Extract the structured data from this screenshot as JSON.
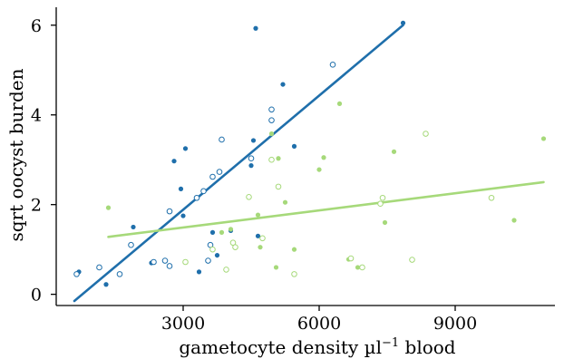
{
  "chart_data": {
    "type": "scatter",
    "xlabel": "gametocyte density µl",
    "xlabel_superscript": "−1",
    "xlabel_suffix": " blood",
    "ylabel": "sqrt oocyst burden",
    "xlim": [
      200,
      11200
    ],
    "ylim": [
      -0.25,
      6.4
    ],
    "x_ticks": [
      3000,
      6000,
      9000
    ],
    "x_tick_labels": [
      "3000",
      "6000",
      "9000"
    ],
    "y_ticks": [
      0,
      2,
      4,
      6
    ],
    "y_tick_labels": [
      "0",
      "2",
      "4",
      "6"
    ],
    "grid": false,
    "colors": {
      "blue": "#1f6fab",
      "green": "#a6d97a"
    },
    "series": [
      {
        "color": "#1f6fab",
        "filled": [
          [
            700,
            0.5
          ],
          [
            1300,
            0.22
          ],
          [
            1900,
            1.5
          ],
          [
            2300,
            0.7
          ],
          [
            2800,
            2.97
          ],
          [
            2950,
            2.35
          ],
          [
            3000,
            1.75
          ],
          [
            3050,
            3.25
          ],
          [
            3350,
            0.5
          ],
          [
            3650,
            1.38
          ],
          [
            3750,
            0.87
          ],
          [
            4050,
            1.42
          ],
          [
            4500,
            2.87
          ],
          [
            4550,
            3.43
          ],
          [
            4600,
            5.93
          ],
          [
            4650,
            1.3
          ],
          [
            5200,
            4.68
          ],
          [
            5450,
            3.3
          ],
          [
            7850,
            6.05
          ]
        ],
        "hollow": [
          [
            650,
            0.45
          ],
          [
            1150,
            0.6
          ],
          [
            1600,
            0.45
          ],
          [
            1850,
            1.1
          ],
          [
            2350,
            0.72
          ],
          [
            2600,
            0.75
          ],
          [
            2700,
            0.63
          ],
          [
            2700,
            1.85
          ],
          [
            3300,
            2.15
          ],
          [
            3450,
            2.3
          ],
          [
            3550,
            0.75
          ],
          [
            3600,
            1.1
          ],
          [
            3650,
            2.62
          ],
          [
            3800,
            2.73
          ],
          [
            3850,
            3.45
          ],
          [
            4500,
            3.03
          ],
          [
            4950,
            4.12
          ],
          [
            4950,
            3.88
          ],
          [
            6300,
            5.12
          ]
        ],
        "fit": [
          [
            600,
            -0.15
          ],
          [
            7850,
            6.0
          ]
        ]
      },
      {
        "color": "#a6d97a",
        "filled": [
          [
            1350,
            1.93
          ],
          [
            3850,
            1.38
          ],
          [
            4050,
            1.45
          ],
          [
            4650,
            1.77
          ],
          [
            4700,
            1.05
          ],
          [
            4950,
            3.58
          ],
          [
            5050,
            0.6
          ],
          [
            5100,
            3.03
          ],
          [
            5250,
            2.05
          ],
          [
            5450,
            1.0
          ],
          [
            6000,
            2.78
          ],
          [
            6100,
            3.05
          ],
          [
            6450,
            4.25
          ],
          [
            6650,
            0.78
          ],
          [
            6850,
            0.6
          ],
          [
            7450,
            1.6
          ],
          [
            7650,
            3.18
          ],
          [
            10300,
            1.65
          ],
          [
            10950,
            3.47
          ]
        ],
        "hollow": [
          [
            3050,
            0.72
          ],
          [
            3650,
            1.0
          ],
          [
            3950,
            0.55
          ],
          [
            4100,
            1.15
          ],
          [
            4150,
            1.05
          ],
          [
            4450,
            2.17
          ],
          [
            4750,
            1.25
          ],
          [
            4950,
            3.0
          ],
          [
            5100,
            2.4
          ],
          [
            5450,
            0.45
          ],
          [
            6700,
            0.8
          ],
          [
            6950,
            0.6
          ],
          [
            7350,
            2.02
          ],
          [
            7400,
            2.15
          ],
          [
            8050,
            0.77
          ],
          [
            8350,
            3.58
          ],
          [
            9800,
            2.15
          ]
        ],
        "fit": [
          [
            1350,
            1.28
          ],
          [
            10950,
            2.5
          ]
        ]
      }
    ]
  }
}
